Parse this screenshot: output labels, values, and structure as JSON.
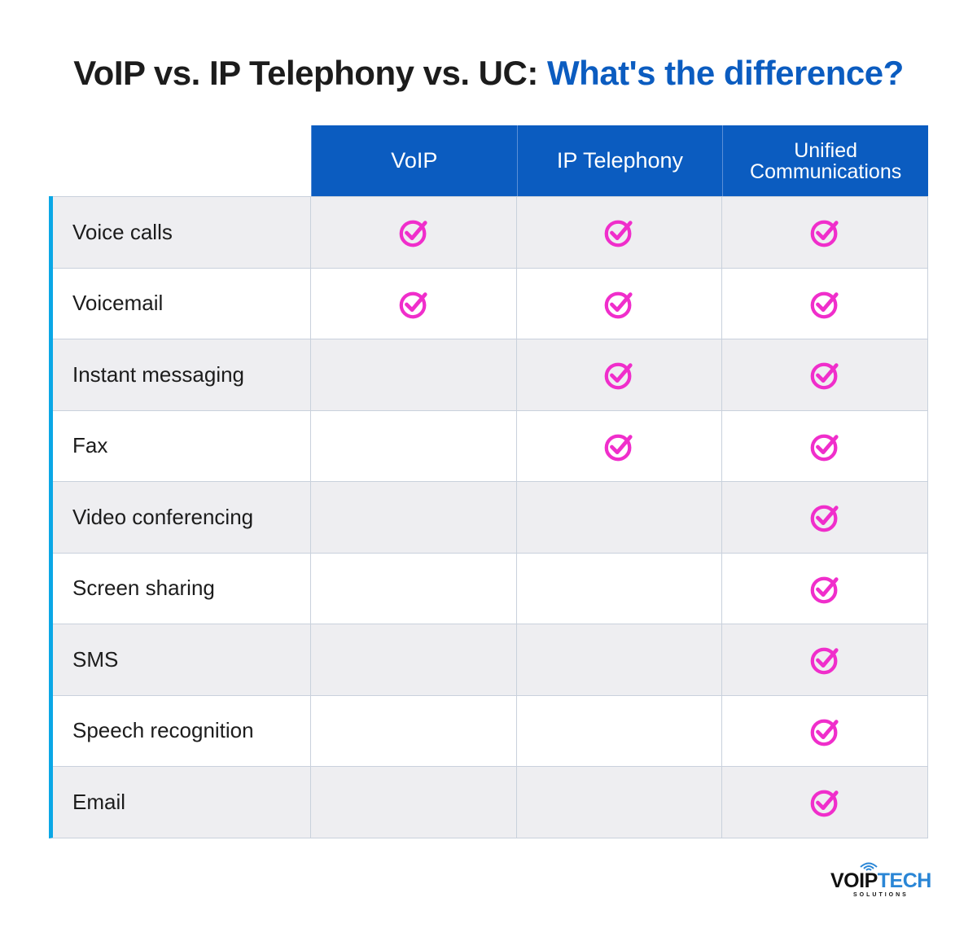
{
  "title": {
    "part1": "VoIP vs. IP Telephony vs. UC:",
    "part2": "What's the difference?"
  },
  "colors": {
    "header_blue": "#0b5cc0",
    "accent_bar": "#0aa7e6",
    "check": "#f02ecb",
    "shaded_row": "#eeeef1"
  },
  "columns": [
    "VoIP",
    "IP Telephony",
    "Unified Communications"
  ],
  "columns_display": {
    "c0": "VoIP",
    "c1": "IP Telephony",
    "c2_line1": "Unified",
    "c2_line2": "Communications"
  },
  "rows": [
    {
      "feature": "Voice calls",
      "voip": true,
      "ip_telephony": true,
      "uc": true
    },
    {
      "feature": "Voicemail",
      "voip": true,
      "ip_telephony": true,
      "uc": true
    },
    {
      "feature": "Instant messaging",
      "voip": false,
      "ip_telephony": true,
      "uc": true
    },
    {
      "feature": "Fax",
      "voip": false,
      "ip_telephony": true,
      "uc": true
    },
    {
      "feature": "Video conferencing",
      "voip": false,
      "ip_telephony": false,
      "uc": true
    },
    {
      "feature": "Screen sharing",
      "voip": false,
      "ip_telephony": false,
      "uc": true
    },
    {
      "feature": "SMS",
      "voip": false,
      "ip_telephony": false,
      "uc": true
    },
    {
      "feature": "Speech recognition",
      "voip": false,
      "ip_telephony": false,
      "uc": true
    },
    {
      "feature": "Email",
      "voip": false,
      "ip_telephony": false,
      "uc": true
    }
  ],
  "check_icon": "check-circle-icon",
  "logo": {
    "brand_part1": "VOIP",
    "brand_part2": "TECH",
    "tagline": "SOLUTIONS"
  }
}
